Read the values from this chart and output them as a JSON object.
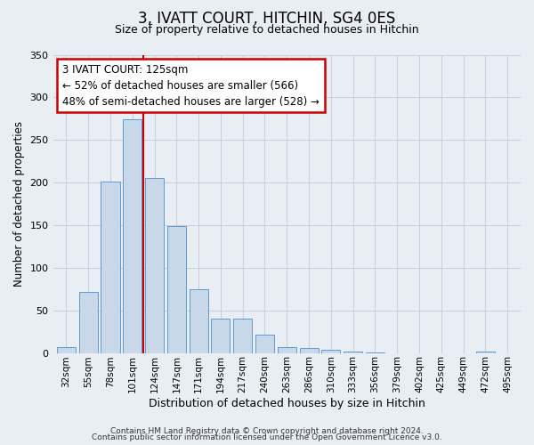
{
  "title": "3, IVATT COURT, HITCHIN, SG4 0ES",
  "subtitle": "Size of property relative to detached houses in Hitchin",
  "xlabel": "Distribution of detached houses by size in Hitchin",
  "ylabel": "Number of detached properties",
  "categories": [
    "32sqm",
    "55sqm",
    "78sqm",
    "101sqm",
    "124sqm",
    "147sqm",
    "171sqm",
    "194sqm",
    "217sqm",
    "240sqm",
    "263sqm",
    "286sqm",
    "310sqm",
    "333sqm",
    "356sqm",
    "379sqm",
    "402sqm",
    "425sqm",
    "449sqm",
    "472sqm",
    "495sqm"
  ],
  "values": [
    7,
    72,
    201,
    274,
    205,
    149,
    75,
    40,
    40,
    21,
    7,
    6,
    4,
    2,
    1,
    0,
    0,
    0,
    0,
    2,
    0
  ],
  "bar_color": "#c8d8e8",
  "bar_edge_color": "#5b9bd5",
  "vline_x": 3.5,
  "vline_color": "#cc0000",
  "annotation_title": "3 IVATT COURT: 125sqm",
  "annotation_line1": "← 52% of detached houses are smaller (566)",
  "annotation_line2": "48% of semi-detached houses are larger (528) →",
  "annotation_box_facecolor": "#ffffff",
  "annotation_box_edgecolor": "#cc0000",
  "ylim": [
    0,
    350
  ],
  "yticks": [
    0,
    50,
    100,
    150,
    200,
    250,
    300,
    350
  ],
  "footer1": "Contains HM Land Registry data © Crown copyright and database right 2024.",
  "footer2": "Contains public sector information licensed under the Open Government Licence v3.0.",
  "bg_color": "#e8eef4",
  "plot_bg_color": "#e8eef4",
  "grid_color": "#c5cdd8",
  "title_fontsize": 12,
  "subtitle_fontsize": 9
}
